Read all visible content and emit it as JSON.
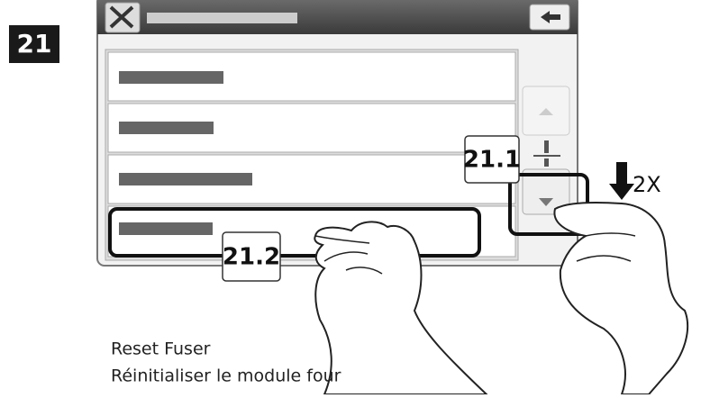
{
  "step": {
    "number": "21"
  },
  "callouts": [
    {
      "label": "21.1"
    },
    {
      "label": "21.2"
    }
  ],
  "repeat": "2X",
  "caption": {
    "en": "Reset Fuser",
    "fr": "Réinitialiser le module four"
  }
}
